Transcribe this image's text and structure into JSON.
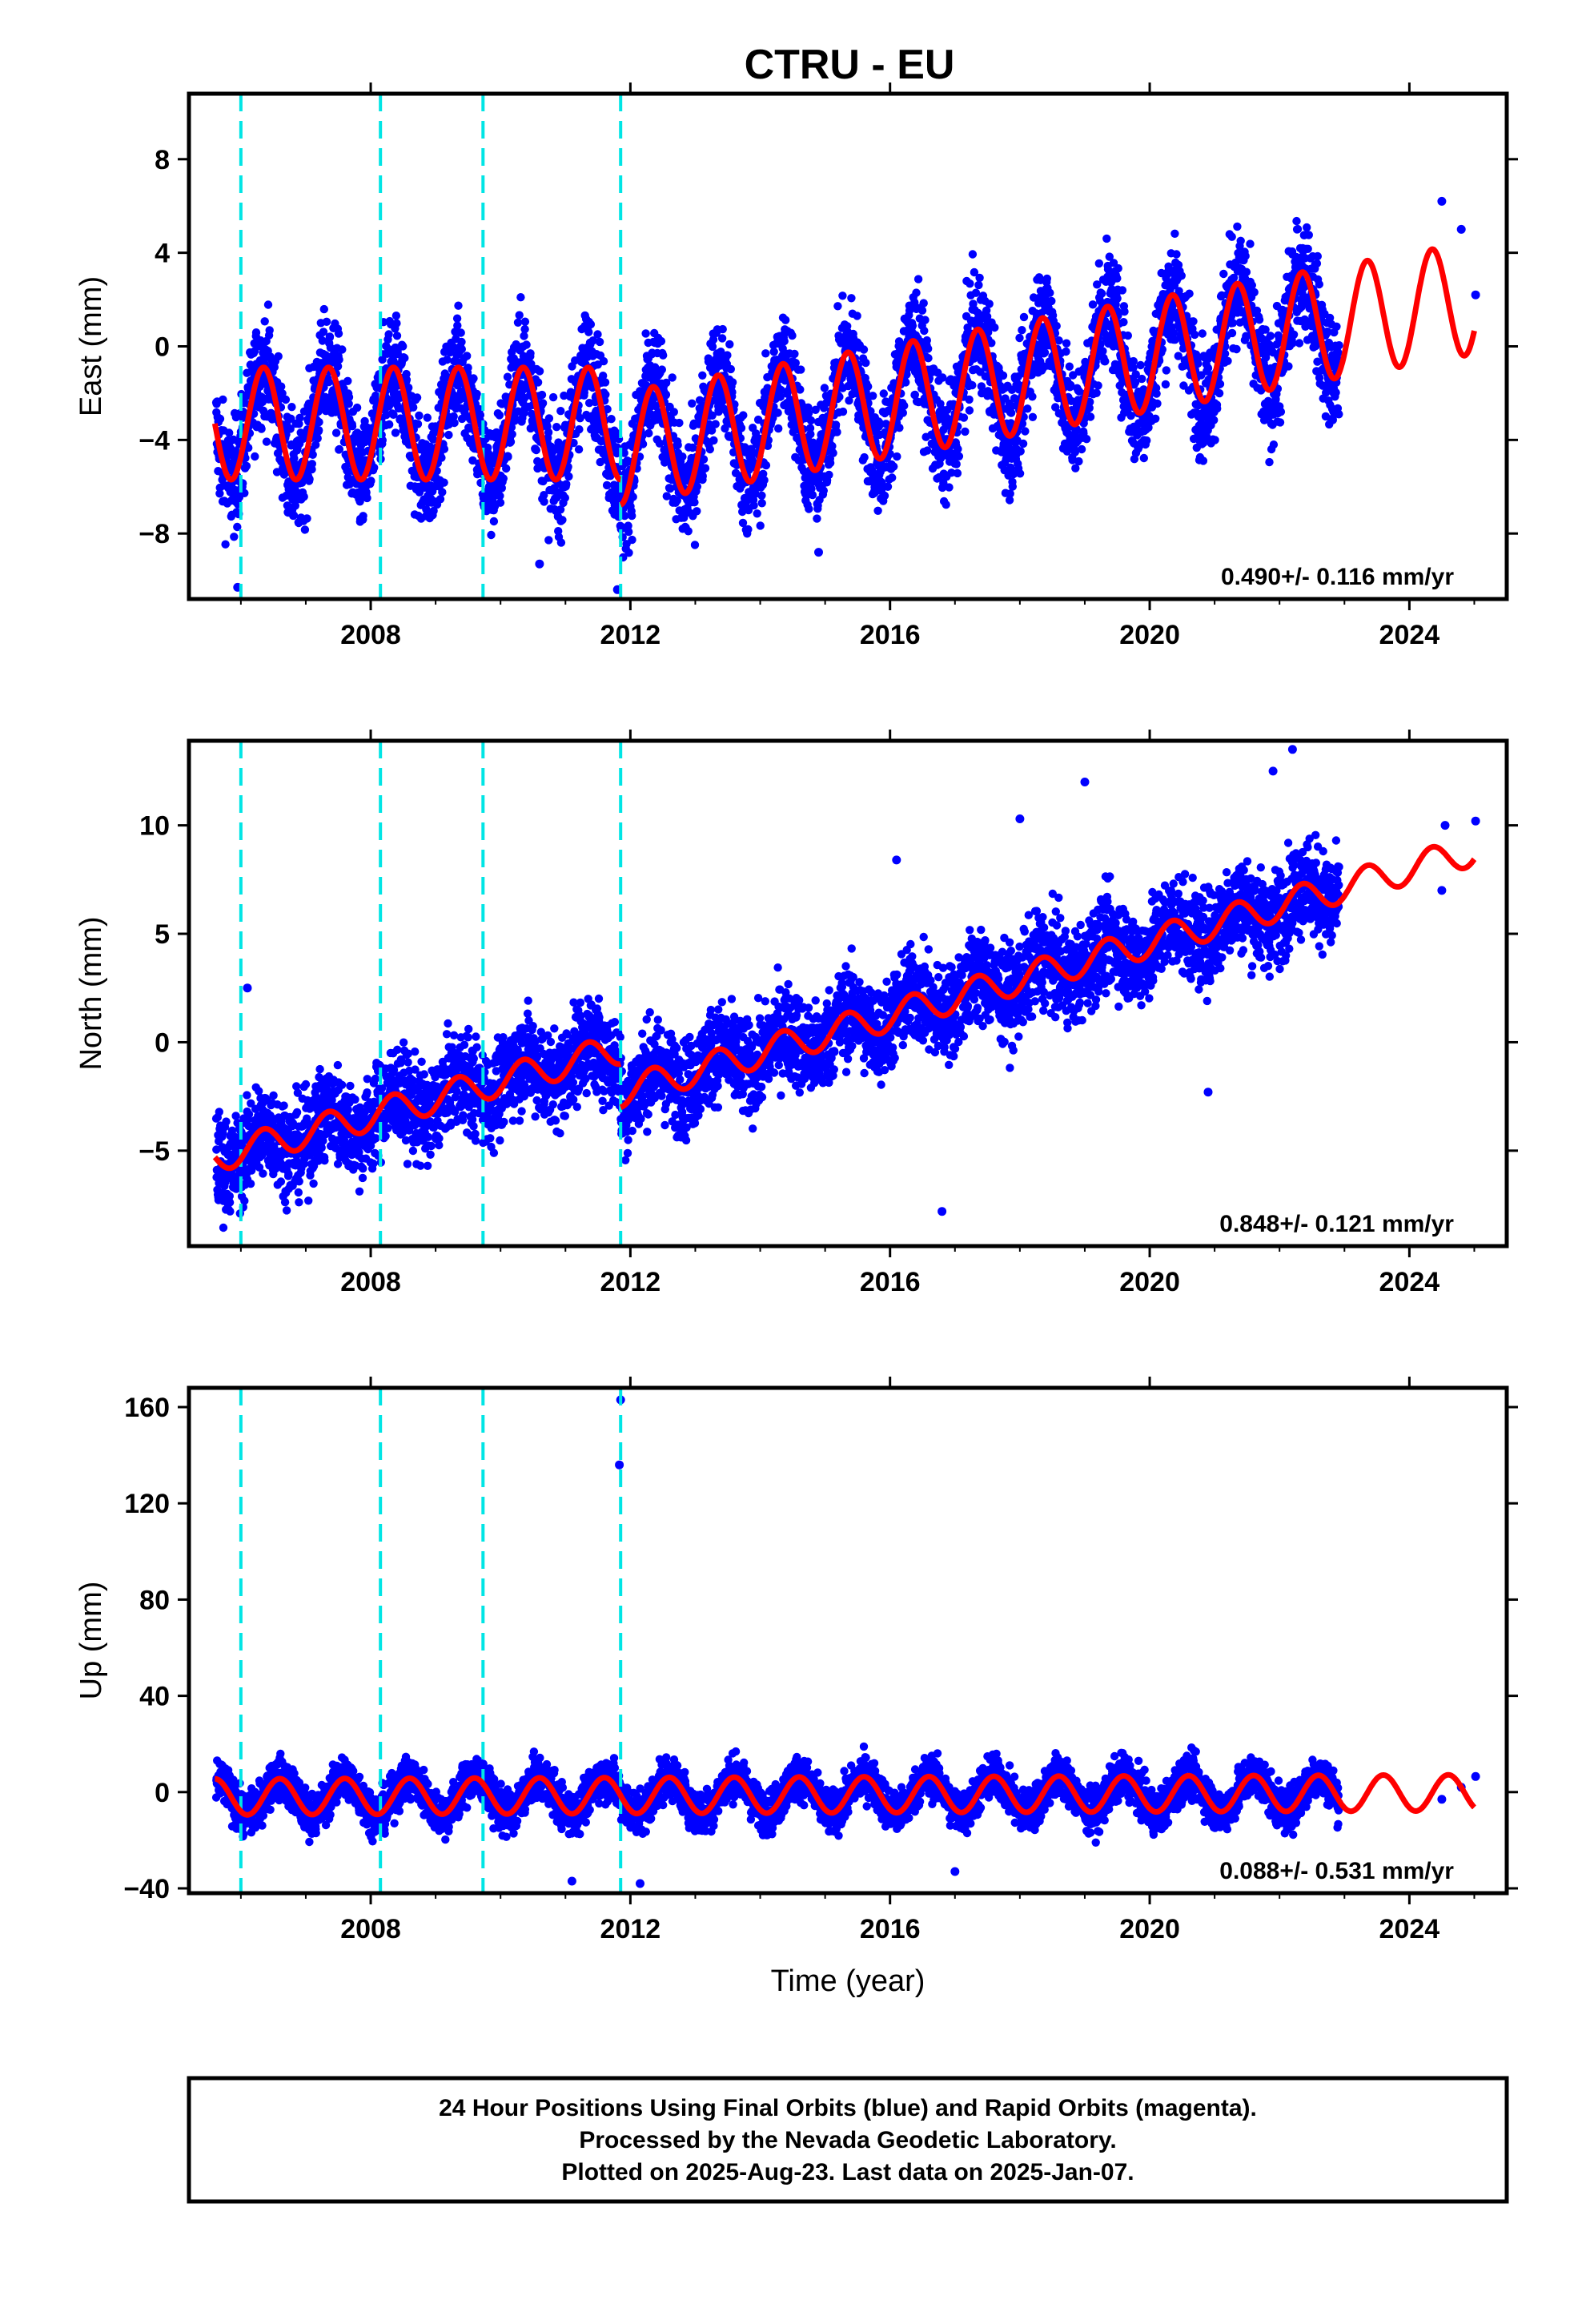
{
  "title": "CTRU - EU",
  "footer": {
    "line1": "24 Hour Positions Using Final Orbits (blue) and Rapid Orbits (magenta).",
    "line2": "Processed by the Nevada Geodetic Laboratory.",
    "line3": "Plotted on 2025-Aug-23. Last data on 2025-Jan-07."
  },
  "colors": {
    "data": "#0000ff",
    "model": "#ff0000",
    "offset": "#00e5e5",
    "frame": "#000000"
  },
  "chart_data": [
    {
      "type": "scatter",
      "ylabel": "East (mm)",
      "xlabel": "",
      "xlim": [
        2005.2,
        2025.5
      ],
      "ylim": [
        -10.8,
        10.8
      ],
      "xticks": [
        2008,
        2012,
        2016,
        2020,
        2024
      ],
      "yticks": [
        -8,
        -4,
        0,
        4,
        8
      ],
      "rate_label": "0.490+/- 0.116 mm/yr",
      "offsets": [
        2006.0,
        2008.15,
        2009.73,
        2011.85
      ],
      "data_span": [
        2005.62,
        2022.92
      ],
      "extra_points_after": [
        [
          2024.5,
          6.2
        ],
        [
          2024.8,
          5.0
        ],
        [
          2025.02,
          2.2
        ]
      ],
      "outliers": [
        [
          2005.95,
          -10.3
        ],
        [
          2011.8,
          -10.4
        ],
        [
          2014.9,
          -8.8
        ],
        [
          2010.6,
          -9.3
        ],
        [
          2017.0,
          -5.0
        ]
      ],
      "model": {
        "segments": [
          {
            "start": 2005.6,
            "end": 2011.85,
            "a": -3.3,
            "b": 0.0
          },
          {
            "start": 2011.85,
            "end": 2025.0,
            "a": -4.37,
            "b": 0.49
          }
        ],
        "amplitude_start": 2.4,
        "amplitude_growth": 0.0,
        "phase_peak": 0.35,
        "noise": 1.2
      }
    },
    {
      "type": "scatter",
      "ylabel": "North (mm)",
      "xlabel": "",
      "xlim": [
        2005.2,
        2025.5
      ],
      "ylim": [
        -9.4,
        13.9
      ],
      "xticks": [
        2008,
        2012,
        2016,
        2020,
        2024
      ],
      "yticks": [
        -5,
        0,
        5,
        10
      ],
      "rate_label": "0.848+/- 0.121 mm/yr",
      "offsets": [
        2006.0,
        2008.15,
        2009.73,
        2011.85
      ],
      "data_span": [
        2005.62,
        2022.92
      ],
      "extra_points_after": [
        [
          2024.5,
          7.0
        ],
        [
          2024.55,
          10.0
        ],
        [
          2025.02,
          10.2
        ]
      ],
      "outliers": [
        [
          2006.1,
          2.5
        ],
        [
          2016.8,
          -7.8
        ],
        [
          2019.0,
          12.0
        ],
        [
          2022.2,
          13.5
        ],
        [
          2016.1,
          8.4
        ],
        [
          2018.0,
          10.3
        ],
        [
          2020.9,
          -2.3
        ],
        [
          2021.9,
          12.5
        ]
      ],
      "model": {
        "segments": [
          {
            "start": 2005.6,
            "end": 2011.85,
            "a": -5.3,
            "b": 0.8
          },
          {
            "start": 2011.85,
            "end": 2025.0,
            "a": -2.3,
            "b": 0.848
          }
        ],
        "amplitude_start": 0.7,
        "amplitude_growth": 0.0,
        "phase_peak": 0.35,
        "noise": 1.1
      }
    },
    {
      "type": "scatter",
      "ylabel": "Up (mm)",
      "xlabel": "Time (year)",
      "xlim": [
        2005.2,
        2025.5
      ],
      "ylim": [
        -42,
        168
      ],
      "xticks": [
        2008,
        2012,
        2016,
        2020,
        2024
      ],
      "yticks": [
        -40,
        0,
        40,
        80,
        120,
        160
      ],
      "rate_label": "0.088+/- 0.531 mm/yr",
      "offsets": [
        2006.0,
        2008.15,
        2009.73,
        2011.85
      ],
      "data_span": [
        2005.62,
        2022.92
      ],
      "extra_points_after": [
        [
          2024.5,
          -3.0
        ],
        [
          2024.8,
          2.0
        ],
        [
          2025.02,
          6.5
        ]
      ],
      "outliers": [
        [
          2011.85,
          163
        ],
        [
          2011.83,
          136
        ],
        [
          2011.1,
          -37
        ],
        [
          2012.15,
          -38
        ],
        [
          2017.0,
          -33
        ]
      ],
      "model": {
        "segments": [
          {
            "start": 2005.6,
            "end": 2025.0,
            "a": -2.0,
            "b": 0.088
          }
        ],
        "amplitude_start": 7.5,
        "amplitude_growth": 0.0,
        "phase_peak": 0.6,
        "noise": 4.5
      }
    }
  ]
}
